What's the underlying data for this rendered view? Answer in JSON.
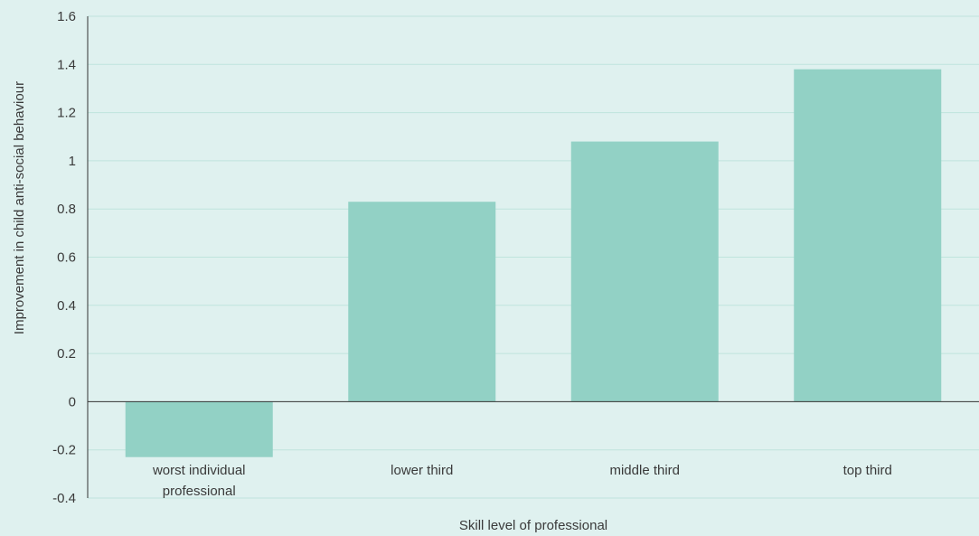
{
  "chart_data": {
    "type": "bar",
    "title": "",
    "xlabel": "Skill level of professional",
    "ylabel": "Improvement in child anti-social behaviour",
    "ylim": [
      -0.4,
      1.6
    ],
    "yticks": [
      -0.4,
      -0.2,
      0,
      0.2,
      0.4,
      0.6,
      0.8,
      1,
      1.2,
      1.4,
      1.6
    ],
    "ytick_labels": [
      "-0.4",
      "-0.2",
      "0",
      "0.2",
      "0.4",
      "0.6",
      "0.8",
      "1",
      "1.2",
      "1.4",
      "1.6"
    ],
    "grid": true,
    "legend": "none",
    "categories": [
      [
        "worst individual",
        "professional"
      ],
      [
        "lower third"
      ],
      [
        "middle third"
      ],
      [
        "top third"
      ]
    ],
    "values": [
      -0.23,
      0.83,
      1.08,
      1.38
    ],
    "colors": {
      "background": "#dff1ef",
      "bar": "#92d1c5",
      "grid": "#bfe4dd",
      "axis": "#333333"
    }
  }
}
